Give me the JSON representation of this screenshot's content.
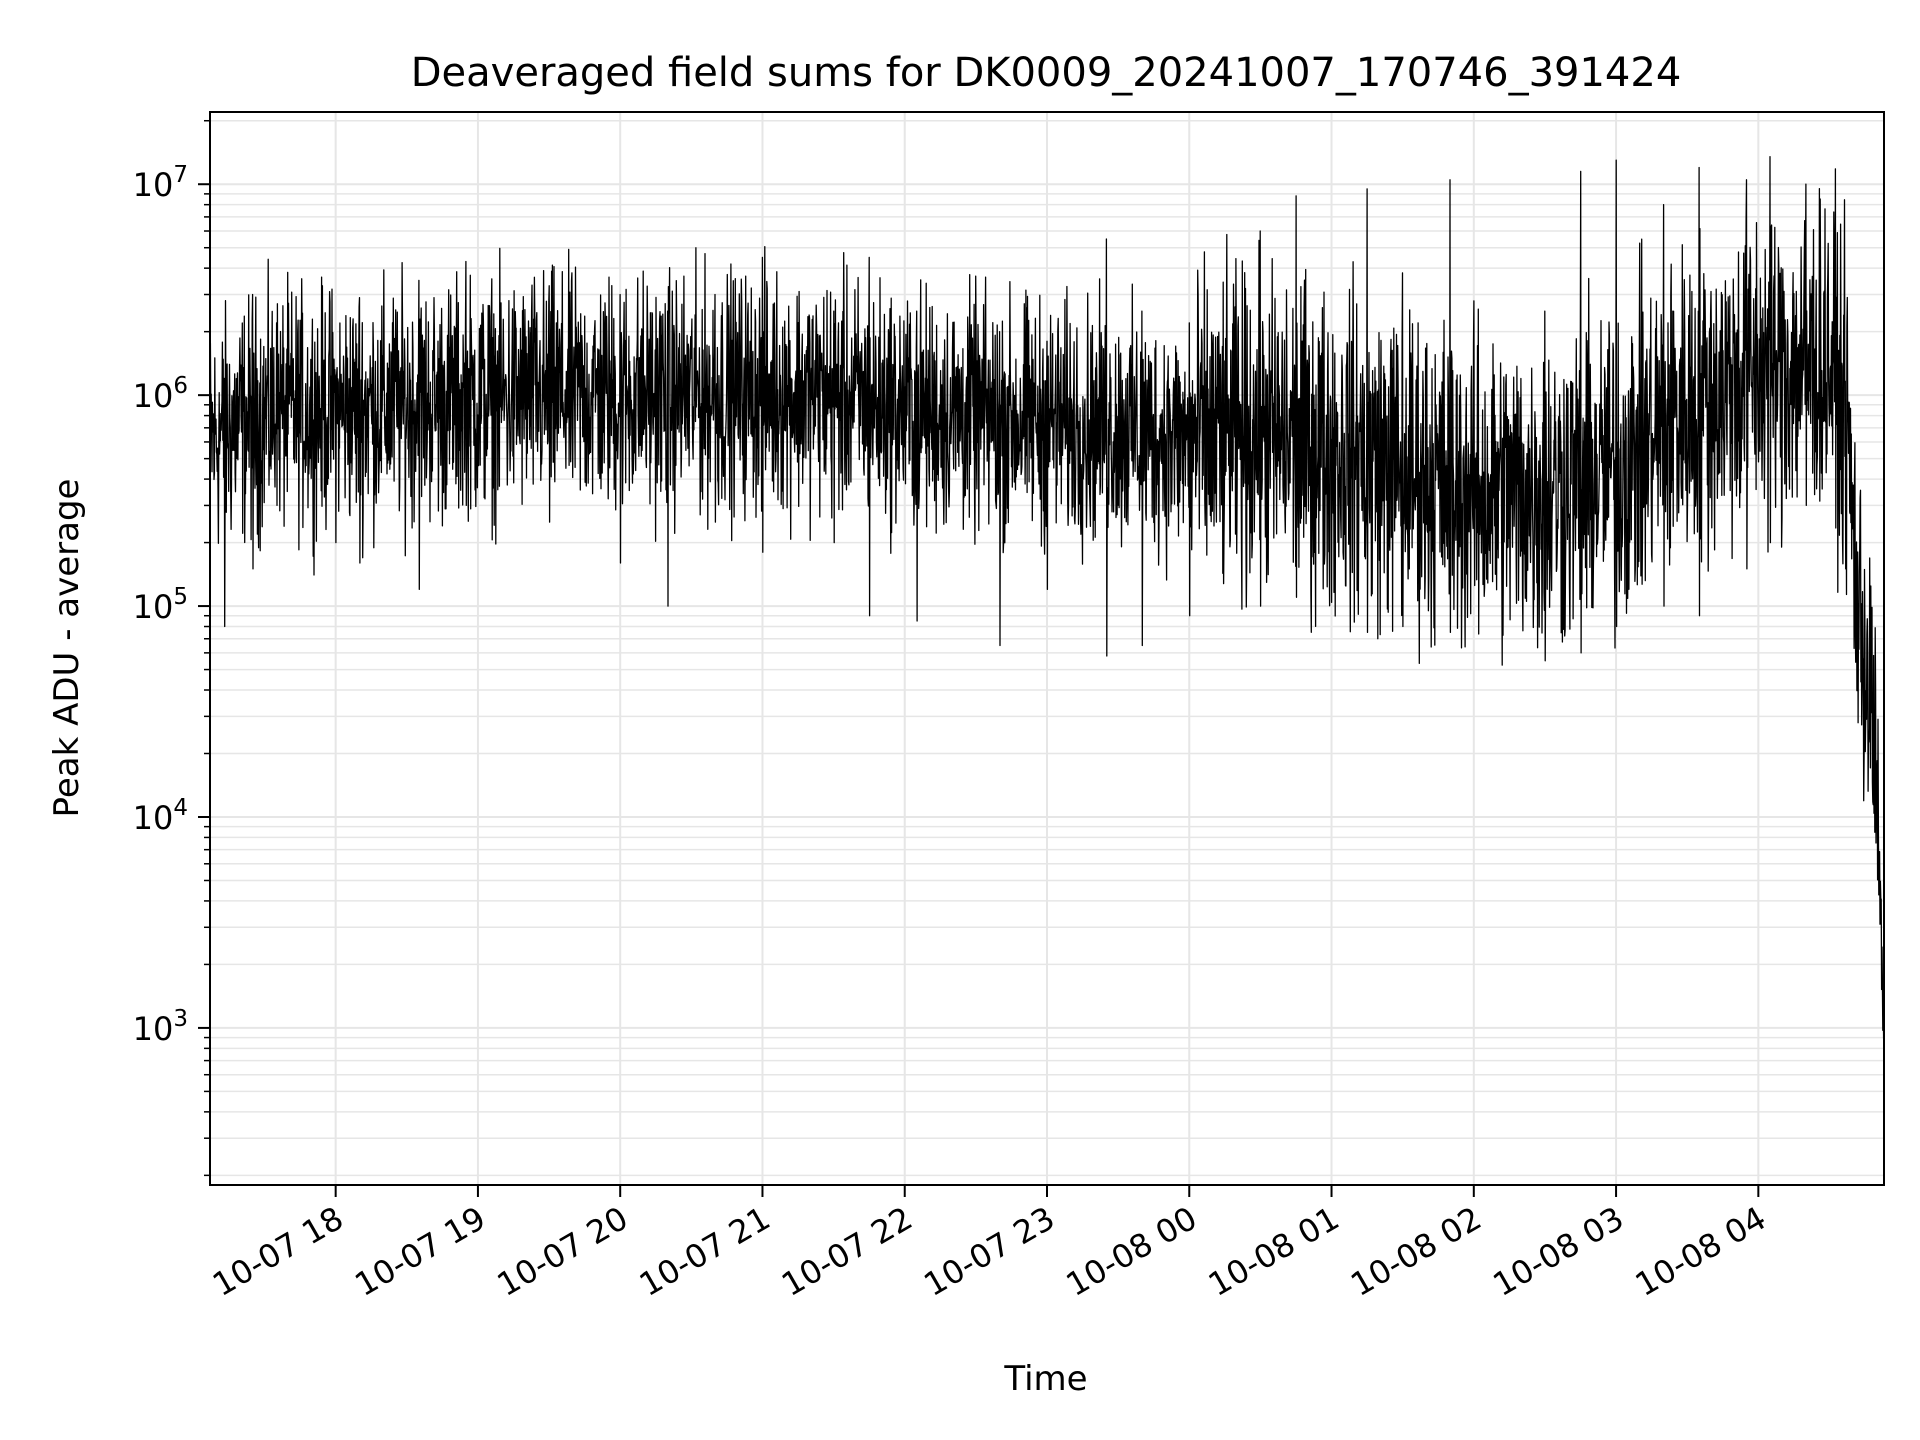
{
  "chart_data": {
    "type": "line",
    "title": "Deaveraged field sums for DK0009_20241007_170746_391424",
    "xlabel": "Time",
    "ylabel": "Peak ADU - average",
    "y_scale": "log",
    "ylim": [
      180,
      22000000
    ],
    "xlim": [
      "2024-10-07 17:07",
      "2024-10-08 04:53"
    ],
    "grid": true,
    "line_color": "#000000",
    "grid_color": "#e6e6e6",
    "x_ticks": [
      {
        "value": "2024-10-07 18:00",
        "label": "10-07 18"
      },
      {
        "value": "2024-10-07 19:00",
        "label": "10-07 19"
      },
      {
        "value": "2024-10-07 20:00",
        "label": "10-07 20"
      },
      {
        "value": "2024-10-07 21:00",
        "label": "10-07 21"
      },
      {
        "value": "2024-10-07 22:00",
        "label": "10-07 22"
      },
      {
        "value": "2024-10-07 23:00",
        "label": "10-07 23"
      },
      {
        "value": "2024-10-08 00:00",
        "label": "10-08 00"
      },
      {
        "value": "2024-10-08 01:00",
        "label": "10-08 01"
      },
      {
        "value": "2024-10-08 02:00",
        "label": "10-08 02"
      },
      {
        "value": "2024-10-08 03:00",
        "label": "10-08 03"
      },
      {
        "value": "2024-10-08 04:00",
        "label": "10-08 04"
      }
    ],
    "y_ticks": [
      {
        "value": 1000,
        "label_base": "10",
        "label_exp": "3"
      },
      {
        "value": 10000,
        "label_base": "10",
        "label_exp": "4"
      },
      {
        "value": 100000,
        "label_base": "10",
        "label_exp": "5"
      },
      {
        "value": 1000000,
        "label_base": "10",
        "label_exp": "6"
      },
      {
        "value": 10000000,
        "label_base": "10",
        "label_exp": "7"
      }
    ],
    "series": [
      {
        "x": [
          "2024-10-07 17:07",
          "2024-10-07 17:15",
          "2024-10-07 17:30",
          "2024-10-07 17:45",
          "2024-10-07 18:00",
          "2024-10-07 18:30",
          "2024-10-07 19:00",
          "2024-10-07 19:30",
          "2024-10-07 20:00",
          "2024-10-07 20:30",
          "2024-10-07 21:00",
          "2024-10-07 21:30",
          "2024-10-07 22:00",
          "2024-10-07 22:30",
          "2024-10-07 23:00",
          "2024-10-07 23:30",
          "2024-10-08 00:00",
          "2024-10-08 00:30",
          "2024-10-08 01:00",
          "2024-10-08 01:30",
          "2024-10-08 02:00",
          "2024-10-08 02:30",
          "2024-10-08 03:00",
          "2024-10-08 03:30",
          "2024-10-08 04:00",
          "2024-10-08 04:30",
          "2024-10-08 04:37",
          "2024-10-08 04:42",
          "2024-10-08 04:46",
          "2024-10-08 04:49",
          "2024-10-08 04:51",
          "2024-10-08 04:53"
        ],
        "y": [
          600000,
          700000,
          800000,
          850000,
          850000,
          900000,
          950000,
          1000000,
          1000000,
          1000000,
          1050000,
          1000000,
          850000,
          800000,
          750000,
          700000,
          600000,
          650000,
          550000,
          450000,
          350000,
          350000,
          450000,
          900000,
          1300000,
          1500000,
          800000,
          100000,
          50000,
          20000,
          5000,
          1000
        ]
      }
    ],
    "peaks": [
      {
        "x": "2024-10-07 17:13",
        "y": 1200000,
        "low": 80000
      },
      {
        "x": "2024-10-07 17:25",
        "y": 3000000,
        "low": 150000
      },
      {
        "x": "2024-10-07 17:35",
        "y": 2200000,
        "low": 300000
      },
      {
        "x": "2024-10-07 18:10",
        "y": 2900000,
        "low": 160000
      },
      {
        "x": "2024-10-07 18:35",
        "y": 3500000,
        "low": 120000
      },
      {
        "x": "2024-10-07 18:55",
        "y": 4300000,
        "low": 300000
      },
      {
        "x": "2024-10-07 19:30",
        "y": 3300000,
        "low": 250000
      },
      {
        "x": "2024-10-07 20:00",
        "y": 3000000,
        "low": 160000
      },
      {
        "x": "2024-10-07 20:20",
        "y": 2500000,
        "low": 100000
      },
      {
        "x": "2024-10-07 20:40",
        "y": 3000000,
        "low": 250000
      },
      {
        "x": "2024-10-07 21:00",
        "y": 4500000,
        "low": 180000
      },
      {
        "x": "2024-10-07 21:30",
        "y": 2500000,
        "low": 200000
      },
      {
        "x": "2024-10-07 21:45",
        "y": 4500000,
        "low": 90000
      },
      {
        "x": "2024-10-07 22:05",
        "y": 2500000,
        "low": 85000
      },
      {
        "x": "2024-10-07 22:40",
        "y": 2000000,
        "low": 65000
      },
      {
        "x": "2024-10-07 23:00",
        "y": 1800000,
        "low": 120000
      },
      {
        "x": "2024-10-07 23:25",
        "y": 5500000,
        "low": 58000
      },
      {
        "x": "2024-10-07 23:40",
        "y": 2500000,
        "low": 65000
      },
      {
        "x": "2024-10-08 00:00",
        "y": 2200000,
        "low": 90000
      },
      {
        "x": "2024-10-08 00:30",
        "y": 6000000,
        "low": 100000
      },
      {
        "x": "2024-10-08 00:45",
        "y": 8800000,
        "low": 110000
      },
      {
        "x": "2024-10-08 01:15",
        "y": 9500000,
        "low": 75000
      },
      {
        "x": "2024-10-08 01:30",
        "y": 3800000,
        "low": 80000
      },
      {
        "x": "2024-10-08 01:50",
        "y": 10500000,
        "low": 75000
      },
      {
        "x": "2024-10-08 02:30",
        "y": 2500000,
        "low": 55000
      },
      {
        "x": "2024-10-08 02:45",
        "y": 11500000,
        "low": 60000
      },
      {
        "x": "2024-10-08 03:00",
        "y": 13000000,
        "low": 80000
      },
      {
        "x": "2024-10-08 03:20",
        "y": 8000000,
        "low": 100000
      },
      {
        "x": "2024-10-08 03:35",
        "y": 12000000,
        "low": 90000
      },
      {
        "x": "2024-10-08 03:55",
        "y": 10500000,
        "low": 150000
      },
      {
        "x": "2024-10-08 04:05",
        "y": 13500000,
        "low": 200000
      },
      {
        "x": "2024-10-08 04:20",
        "y": 10000000,
        "low": 300000
      }
    ]
  }
}
